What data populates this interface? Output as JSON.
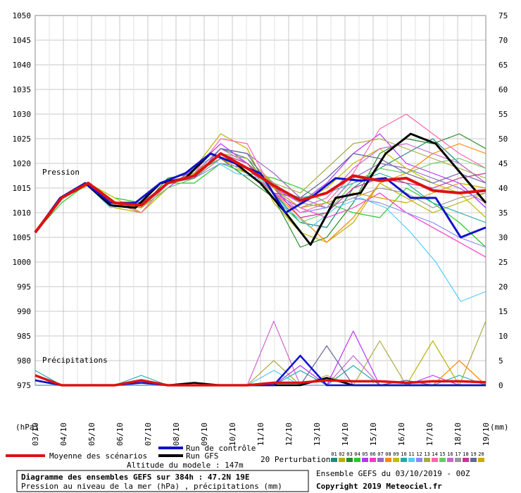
{
  "chart_data": {
    "type": "line",
    "title": "Diagramme des ensembles GEFS sur 384h : 47.2N 19E",
    "subtitle": "Pression au niveau de la mer (hPa) , précipitations (mm)",
    "altitude_label": "Altitude du modele : 147m",
    "run_label": "Ensemble GEFS du 03/10/2019 - 00Z",
    "copyright": "Copyright 2019 Meteociel.fr",
    "unit_label": "(hPa)",
    "unit_label_right": "(mm)",
    "pression_label": "Pression",
    "precip_label": "Précipitations",
    "x_ticks": [
      "03/10",
      "04/10",
      "05/10",
      "06/10",
      "07/10",
      "08/10",
      "09/10",
      "10/10",
      "11/10",
      "12/10",
      "13/10",
      "14/10",
      "15/10",
      "16/10",
      "17/10",
      "18/10",
      "19/10"
    ],
    "y_left_ticks": [
      1050,
      1045,
      1040,
      1035,
      1030,
      1025,
      1020,
      1015,
      1010,
      1005,
      1000,
      995,
      990,
      985,
      980,
      975
    ],
    "y_right_ticks": [
      75,
      70,
      65,
      60,
      55,
      50,
      45,
      40,
      35,
      30,
      25,
      20,
      15,
      10,
      5,
      0
    ],
    "legend": {
      "mean": "Moyenne des scénarios",
      "control": "Run de contrôle",
      "gfs": "Run GFS",
      "perturbations": "20 Perturbations",
      "pert_numbers": [
        "01",
        "02",
        "03",
        "04",
        "05",
        "06",
        "07",
        "08",
        "09",
        "10",
        "11",
        "12",
        "13",
        "14",
        "15",
        "16",
        "17",
        "18",
        "19",
        "20"
      ]
    },
    "colors": {
      "mean": "#dd1111",
      "control": "#1111cc",
      "gfs": "#000000",
      "perturbations": [
        "#1f8a80",
        "#b8b000",
        "#2a8a2a",
        "#22cc22",
        "#b833ff",
        "#ff33cc",
        "#9966cc",
        "#ff8800",
        "#c0c000",
        "#22aaaa",
        "#55ccff",
        "#8888ff",
        "#aaaa44",
        "#ff66aa",
        "#66cc66",
        "#cc66cc",
        "#999999",
        "#cc3399",
        "#666699",
        "#ccaa00"
      ]
    },
    "pressure_series": [
      {
        "name": "Moyenne des scénarios",
        "values": [
          1006,
          1013,
          1016,
          1012,
          1011.5,
          1016,
          1017.5,
          1022,
          1019,
          1015.5,
          1012.5,
          1014,
          1017.5,
          1016.5,
          1017,
          1014.5,
          1014,
          1014.5
        ]
      },
      {
        "name": "Run de contrôle",
        "values": [
          1006,
          1013,
          1016,
          1012,
          1012,
          1016,
          1018,
          1022,
          1020,
          1018,
          1010,
          1013,
          1017,
          1016.5,
          1017,
          1013,
          1013,
          1005,
          1007
        ]
      },
      {
        "name": "Run GFS",
        "values": [
          1006,
          1013,
          1016,
          1011.5,
          1011,
          1016,
          1017,
          1022,
          1020,
          1016,
          1010,
          1003.5,
          1013,
          1014,
          1022,
          1026,
          1024,
          1018,
          1012
        ]
      },
      {
        "values": [
          1006,
          1013,
          1016,
          1012,
          1010,
          1016,
          1018,
          1023,
          1021,
          1014,
          1008,
          1007,
          1015,
          1019,
          1022,
          1025,
          1020,
          1016
        ]
      },
      {
        "values": [
          1006,
          1013,
          1015.5,
          1011,
          1010,
          1015,
          1019,
          1026,
          1023,
          1012,
          1006,
          1004,
          1008,
          1016,
          1013,
          1010,
          1012,
          1014
        ]
      },
      {
        "values": [
          1006,
          1013,
          1016,
          1012,
          1011,
          1017,
          1018,
          1021,
          1017,
          1013,
          1003,
          1005,
          1012,
          1022,
          1025,
          1024,
          1026,
          1023
        ]
      },
      {
        "values": [
          1006,
          1012,
          1016,
          1013,
          1012,
          1016,
          1016,
          1020,
          1018,
          1017,
          1015,
          1012,
          1010,
          1009,
          1015,
          1012,
          1008,
          1003
        ]
      },
      {
        "values": [
          1006,
          1013,
          1016,
          1012,
          1011,
          1015,
          1019,
          1024,
          1020,
          1015,
          1012,
          1016,
          1022,
          1026,
          1020,
          1018,
          1016,
          1011
        ]
      },
      {
        "values": [
          1006,
          1013,
          1016,
          1012,
          1011,
          1016,
          1017,
          1022,
          1019,
          1014,
          1011,
          1009,
          1011,
          1014,
          1010,
          1007,
          1004,
          1001
        ]
      },
      {
        "values": [
          1006,
          1013,
          1016,
          1012,
          1012,
          1016,
          1018,
          1023,
          1022,
          1018,
          1013,
          1011,
          1017,
          1020,
          1019,
          1017,
          1015,
          1012
        ]
      },
      {
        "values": [
          1006,
          1013,
          1016,
          1012,
          1011,
          1016,
          1017,
          1021,
          1018,
          1014,
          1009,
          1004,
          1009,
          1016,
          1018,
          1022,
          1024,
          1022
        ]
      },
      {
        "values": [
          1006,
          1013,
          1016,
          1013,
          1010,
          1016,
          1018,
          1022,
          1020,
          1016,
          1012,
          1015,
          1020,
          1023,
          1019,
          1016,
          1014,
          1009
        ]
      },
      {
        "values": [
          1006,
          1013,
          1016,
          1012,
          1011,
          1016,
          1017,
          1022,
          1020,
          1015,
          1013,
          1014,
          1016,
          1018,
          1016,
          1012,
          1010,
          1008
        ]
      },
      {
        "values": [
          1006,
          1013,
          1016,
          1011,
          1012,
          1016,
          1018,
          1021,
          1018,
          1017,
          1011,
          1007,
          1011,
          1013,
          1011,
          1006,
          1000,
          992,
          994
        ]
      },
      {
        "values": [
          1006,
          1013,
          1016,
          1012,
          1011,
          1016,
          1017,
          1020,
          1019,
          1015,
          1010,
          1011,
          1013,
          1012,
          1010,
          1008,
          1005,
          1003
        ]
      },
      {
        "values": [
          1006,
          1013,
          1016,
          1012,
          1011,
          1016,
          1017,
          1022,
          1021,
          1016,
          1014,
          1019,
          1024,
          1025,
          1023,
          1021,
          1019,
          1017
        ]
      },
      {
        "values": [
          1006,
          1013,
          1016,
          1012,
          1010,
          1016,
          1018,
          1025,
          1024,
          1014,
          1010,
          1012,
          1018,
          1027,
          1030,
          1026,
          1022,
          1019
        ]
      },
      {
        "values": [
          1006,
          1013,
          1016,
          1012,
          1011,
          1015,
          1017,
          1022,
          1020,
          1013,
          1008,
          1010,
          1016,
          1019,
          1018,
          1020,
          1021,
          1019
        ]
      },
      {
        "values": [
          1006,
          1013,
          1016,
          1012,
          1011,
          1016,
          1018,
          1023,
          1020,
          1015,
          1011,
          1013,
          1019,
          1023,
          1024,
          1022,
          1020,
          1016
        ]
      },
      {
        "values": [
          1006,
          1013,
          1016,
          1012,
          1011,
          1016,
          1017,
          1021,
          1019,
          1016,
          1012,
          1011,
          1013,
          1015,
          1014,
          1011,
          1013,
          1014
        ]
      },
      {
        "values": [
          1006,
          1013,
          1016,
          1012,
          1011,
          1016,
          1018,
          1022,
          1020,
          1015,
          1009,
          1010,
          1015,
          1017,
          1016,
          1015,
          1017,
          1018
        ]
      },
      {
        "values": [
          1006,
          1013,
          1016,
          1012,
          1011,
          1016,
          1017,
          1023,
          1022,
          1014,
          1013,
          1017,
          1022,
          1021,
          1018,
          1016,
          1018,
          1016
        ]
      },
      {
        "values": [
          1006,
          1013,
          1016,
          1012,
          1011,
          1016,
          1018,
          1022,
          1019,
          1015,
          1011,
          1012,
          1014,
          1013,
          1012,
          1014,
          1016,
          1015
        ]
      }
    ],
    "precip_series": [
      {
        "name": "Moyenne des scénarios",
        "values": [
          2,
          0,
          0,
          0,
          1,
          0,
          0,
          0,
          0,
          0.5,
          0.5,
          1,
          0.8,
          0.8,
          0.5,
          0.8,
          0.8,
          0.6
        ]
      },
      {
        "name": "Run de contrôle",
        "values": [
          1,
          0,
          0,
          0,
          0.5,
          0,
          0,
          0,
          0,
          0,
          6,
          0,
          0,
          0,
          0,
          0,
          0,
          0
        ]
      },
      {
        "name": "Run GFS",
        "values": [
          1,
          0,
          0,
          0,
          1,
          0,
          0.5,
          0,
          0,
          0,
          0,
          1.5,
          0,
          0,
          0,
          0,
          0,
          0
        ]
      },
      {
        "values": [
          3,
          0,
          0,
          0,
          2,
          0,
          0,
          0,
          0,
          0,
          3,
          0,
          4,
          0,
          0,
          0,
          2,
          0
        ]
      },
      {
        "values": [
          0,
          0,
          0,
          0,
          0,
          0,
          0,
          0,
          0,
          5,
          0,
          2,
          0,
          9,
          0,
          0,
          0,
          13
        ]
      },
      {
        "values": [
          2,
          0,
          0,
          0,
          1,
          0,
          0,
          0,
          0,
          13,
          0,
          0,
          6,
          0,
          0,
          0,
          0,
          0
        ]
      },
      {
        "values": [
          0,
          0,
          0,
          0,
          0,
          0,
          0,
          0,
          0,
          0,
          0,
          8,
          0,
          0,
          1,
          0,
          0,
          0
        ]
      },
      {
        "values": [
          0,
          0,
          0,
          0,
          0,
          0,
          0,
          0,
          0,
          0,
          0,
          0,
          0,
          0,
          0,
          9,
          0,
          0
        ]
      },
      {
        "values": [
          1,
          0,
          0,
          0,
          0,
          0,
          0,
          0,
          0,
          0,
          4,
          0,
          11,
          0,
          0,
          2,
          0,
          0
        ]
      },
      {
        "values": [
          0,
          0,
          0,
          0,
          0,
          0,
          0,
          0,
          0,
          0,
          0,
          0,
          0,
          0,
          0,
          0,
          5,
          0
        ]
      },
      {
        "values": [
          0,
          0,
          0,
          0,
          0,
          0,
          0,
          0,
          0,
          3,
          0,
          0,
          0,
          0,
          0,
          0,
          0,
          0
        ]
      }
    ]
  }
}
